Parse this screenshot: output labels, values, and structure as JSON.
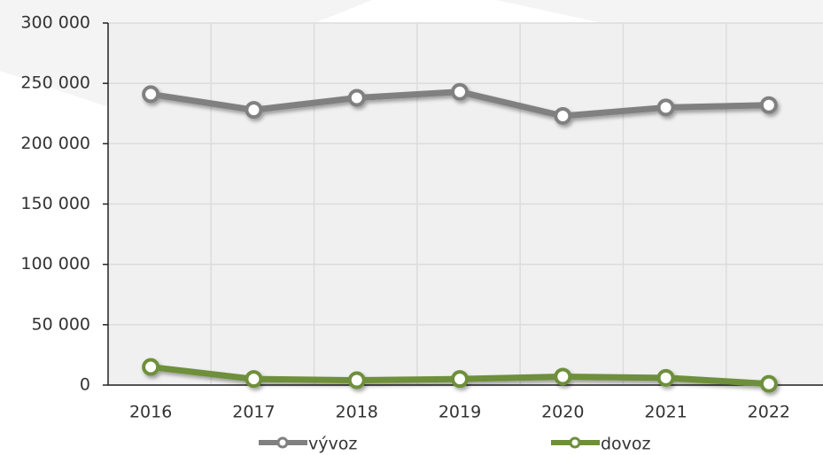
{
  "chart_data": {
    "type": "line",
    "categories": [
      "2016",
      "2017",
      "2018",
      "2019",
      "2020",
      "2021",
      "2022"
    ],
    "series": [
      {
        "name": "vývoz",
        "color": "#808080",
        "values": [
          241000,
          228000,
          238000,
          243000,
          223000,
          230000,
          232000
        ]
      },
      {
        "name": "dovoz",
        "color": "#6e8f3a",
        "values": [
          15000,
          5000,
          4000,
          5000,
          7000,
          6000,
          1000
        ]
      }
    ],
    "ylim": [
      0,
      300000
    ],
    "yticks": [
      {
        "value": 0,
        "label": "0"
      },
      {
        "value": 50000,
        "label": "50 000"
      },
      {
        "value": 100000,
        "label": "100 000"
      },
      {
        "value": 150000,
        "label": "150 000"
      },
      {
        "value": 200000,
        "label": "200 000"
      },
      {
        "value": 250000,
        "label": "250 000"
      },
      {
        "value": 300000,
        "label": "300 000"
      }
    ],
    "grid": true,
    "legend": "bottom"
  }
}
